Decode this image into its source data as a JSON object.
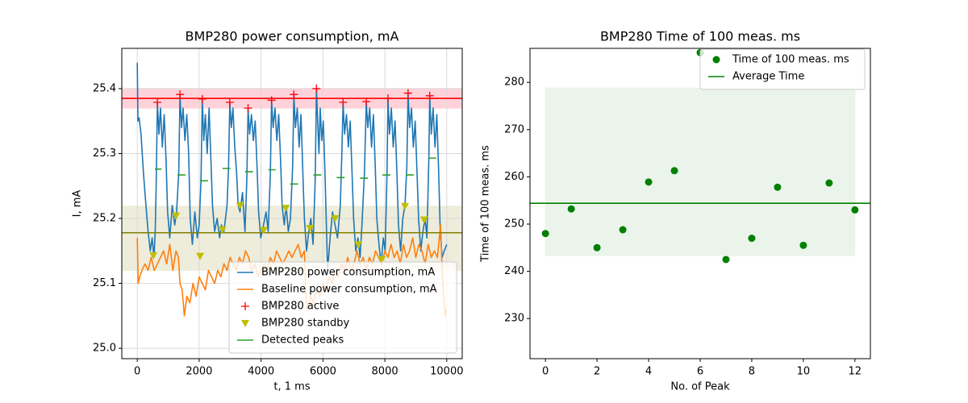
{
  "chart_data": [
    {
      "type": "line",
      "title": "BMP280 power consumption, mA",
      "xlabel": "t, 1 ms",
      "ylabel": "I, mA",
      "xlim": [
        -500,
        10500
      ],
      "ylim": [
        24.984,
        25.462
      ],
      "xticks": [
        0,
        2000,
        4000,
        6000,
        8000,
        10000
      ],
      "yticks": [
        {
          "value": 25,
          "label": "25.0"
        },
        25.1,
        25.2,
        25.3,
        25.4
      ],
      "grid": true,
      "legend": "lower right",
      "reference_lines": [
        {
          "value": 25.385,
          "color": "#ff0000"
        },
        {
          "value": 25.178,
          "color": "#808000"
        }
      ],
      "bands": [
        {
          "range": [
            25.37,
            25.4
          ],
          "color": "#ffc0cb"
        },
        {
          "range": [
            25.12,
            25.219
          ],
          "color": "#e8e4cc"
        }
      ],
      "series": [
        {
          "name": "BMP280 power consumption, mA",
          "color": "#1f77b4",
          "marker": "line",
          "x": [
            0,
            20,
            60,
            120,
            200,
            280,
            350,
            420,
            480,
            540,
            580,
            610,
            650,
            700,
            750,
            810,
            870,
            930,
            980,
            1050,
            1130,
            1210,
            1270,
            1340,
            1380,
            1430,
            1480,
            1540,
            1600,
            1660,
            1710,
            1780,
            1860,
            1940,
            2000,
            2060,
            2100,
            2150,
            2200,
            2260,
            2320,
            2380,
            2430,
            2500,
            2580,
            2660,
            2720,
            2800,
            2900,
            2950,
            2990,
            3040,
            3090,
            3150,
            3210,
            3260,
            3320,
            3400,
            3480,
            3540,
            3580,
            3630,
            3690,
            3750,
            3810,
            3870,
            3920,
            3990,
            4080,
            4160,
            4230,
            4300,
            4340,
            4390,
            4450,
            4510,
            4570,
            4630,
            4680,
            4750,
            4810,
            4880,
            4950,
            5020,
            5060,
            5110,
            5170,
            5230,
            5290,
            5350,
            5400,
            5470,
            5540,
            5610,
            5680,
            5750,
            5790,
            5830,
            5870,
            5910,
            5960,
            6010,
            6060,
            6110,
            6150,
            6230,
            6310,
            6390,
            6470,
            6560,
            6610,
            6650,
            6700,
            6760,
            6820,
            6880,
            6940,
            6990,
            7060,
            7130,
            7200,
            7260,
            7340,
            7400,
            7450,
            7510,
            7570,
            7630,
            7690,
            7740,
            7810,
            7880,
            7950,
            8010,
            8070,
            8100,
            8150,
            8210,
            8270,
            8330,
            8390,
            8440,
            8510,
            8580,
            8650,
            8710,
            8750,
            8800,
            8860,
            8920,
            8980,
            9040,
            9090,
            9160,
            9230,
            9300,
            9360,
            9420,
            9450,
            9500,
            9560,
            9620,
            9680,
            9740,
            9790,
            9850,
            9920,
            10000
          ],
          "values": [
            25.44,
            25.35,
            25.355,
            25.33,
            25.27,
            25.22,
            25.18,
            25.15,
            25.17,
            25.14,
            25.18,
            25.25,
            25.378,
            25.33,
            25.37,
            25.31,
            25.36,
            25.29,
            25.21,
            25.17,
            25.22,
            25.19,
            25.21,
            25.27,
            25.39,
            25.34,
            25.37,
            25.32,
            25.36,
            25.3,
            25.2,
            25.16,
            25.21,
            25.17,
            25.19,
            25.26,
            25.383,
            25.32,
            25.36,
            25.3,
            25.37,
            25.29,
            25.22,
            25.18,
            25.2,
            25.17,
            25.19,
            25.18,
            25.22,
            25.28,
            25.378,
            25.34,
            25.37,
            25.31,
            25.27,
            25.22,
            25.21,
            25.24,
            25.18,
            25.26,
            25.369,
            25.33,
            25.36,
            25.32,
            25.35,
            25.28,
            25.21,
            25.17,
            25.19,
            25.21,
            25.18,
            25.27,
            25.381,
            25.34,
            25.37,
            25.32,
            25.36,
            25.29,
            25.22,
            25.19,
            25.22,
            25.18,
            25.2,
            25.28,
            25.39,
            25.34,
            25.37,
            25.31,
            25.36,
            25.27,
            25.2,
            25.15,
            25.18,
            25.2,
            25.16,
            25.26,
            25.399,
            25.35,
            25.3,
            25.37,
            25.32,
            25.35,
            25.28,
            25.19,
            25.12,
            25.17,
            25.21,
            25.19,
            25.17,
            25.22,
            25.3,
            25.378,
            25.33,
            25.36,
            25.31,
            25.35,
            25.27,
            25.2,
            25.15,
            25.17,
            25.14,
            25.19,
            25.27,
            25.379,
            25.34,
            25.37,
            25.31,
            25.36,
            25.28,
            25.2,
            25.16,
            25.13,
            25.17,
            25.15,
            25.27,
            25.384,
            25.33,
            25.37,
            25.31,
            25.35,
            25.27,
            25.19,
            25.15,
            25.2,
            25.22,
            25.28,
            25.392,
            25.34,
            25.37,
            25.31,
            25.35,
            25.27,
            25.2,
            25.15,
            25.18,
            25.2,
            25.17,
            25.29,
            25.388,
            25.33,
            25.37,
            25.31,
            25.36,
            25.27,
            25.18,
            25.14,
            25.15,
            25.16
          ]
        },
        {
          "name": "Baseline power consumption, mA",
          "color": "#ff7f0e",
          "marker": "line",
          "x": [
            0,
            30,
            80,
            150,
            250,
            350,
            450,
            550,
            650,
            750,
            850,
            950,
            1050,
            1150,
            1250,
            1330,
            1380,
            1450,
            1520,
            1600,
            1700,
            1800,
            1900,
            2000,
            2100,
            2200,
            2300,
            2400,
            2500,
            2600,
            2700,
            2800,
            2900,
            3000,
            3100,
            3200,
            3300,
            3400,
            3500,
            3600,
            3700,
            3800,
            3900,
            4000,
            4100,
            4200,
            4300,
            4400,
            4500,
            4600,
            4700,
            4800,
            4900,
            5000,
            5100,
            5200,
            5300,
            5400,
            5450,
            5500,
            5600,
            5700,
            5800,
            5900,
            6000,
            6100,
            6200,
            6300,
            6400,
            6500,
            6600,
            6700,
            6800,
            6900,
            7000,
            7100,
            7200,
            7300,
            7400,
            7500,
            7600,
            7700,
            7800,
            7900,
            8000,
            8100,
            8200,
            8300,
            8400,
            8500,
            8600,
            8700,
            8800,
            8900,
            9000,
            9100,
            9200,
            9300,
            9400,
            9500,
            9600,
            9700,
            9800,
            9850,
            9900,
            9950,
            10000
          ],
          "values": [
            25.17,
            25.1,
            25.11,
            25.12,
            25.13,
            25.12,
            25.14,
            25.12,
            25.13,
            25.14,
            25.15,
            25.13,
            25.16,
            25.12,
            25.15,
            25.14,
            25.1,
            25.09,
            25.05,
            25.08,
            25.07,
            25.1,
            25.08,
            25.11,
            25.1,
            25.09,
            25.12,
            25.11,
            25.1,
            25.12,
            25.11,
            25.13,
            25.12,
            25.14,
            25.13,
            25.12,
            25.14,
            25.13,
            25.15,
            25.14,
            25.12,
            25.13,
            25.11,
            25.12,
            25.13,
            25.12,
            25.14,
            25.13,
            25.15,
            25.14,
            25.13,
            25.14,
            25.15,
            25.14,
            25.15,
            25.16,
            25.14,
            25.15,
            25.08,
            25.06,
            25.08,
            25.07,
            25.09,
            25.08,
            25.1,
            25.09,
            25.11,
            25.1,
            25.12,
            25.11,
            25.13,
            25.12,
            25.14,
            25.12,
            25.13,
            25.15,
            25.13,
            25.14,
            25.12,
            25.14,
            25.13,
            25.15,
            25.14,
            25.13,
            25.15,
            25.14,
            25.16,
            25.14,
            25.15,
            25.13,
            25.16,
            25.14,
            25.15,
            25.17,
            25.14,
            25.16,
            25.15,
            25.13,
            25.16,
            25.14,
            25.15,
            25.14,
            25.19,
            25.12,
            25.08,
            25.05,
            25.06
          ]
        },
        {
          "name": "BMP280 active",
          "color": "#ff0000",
          "marker": "+",
          "x": [
            650,
            1380,
            2100,
            2990,
            3580,
            4340,
            5060,
            5790,
            6650,
            7400,
            8100,
            8750,
            9450
          ],
          "values": [
            25.379,
            25.391,
            25.384,
            25.379,
            25.37,
            25.382,
            25.391,
            25.4,
            25.379,
            25.38,
            25.385,
            25.393,
            25.389
          ]
        },
        {
          "name": "BMP280 standby",
          "color": "#bfbf00",
          "marker": "v",
          "x": [
            520,
            1250,
            2030,
            2750,
            3320,
            4080,
            4800,
            5580,
            6390,
            7140,
            7900,
            8650,
            9270
          ],
          "values": [
            25.143,
            25.204,
            25.142,
            25.183,
            25.22,
            25.182,
            25.216,
            25.185,
            25.2,
            25.16,
            25.137,
            25.219,
            25.198
          ]
        },
        {
          "name": "Detected peaks",
          "color": "#2ca02c",
          "marker": "line",
          "x": [
            571,
            779,
            null,
            1299,
            1558,
            null,
            2026,
            2286,
            null,
            2753,
            3013,
            null,
            3481,
            3740,
            null,
            4234,
            4468,
            null,
            4935,
            5195,
            null,
            5688,
            5948,
            null,
            6442,
            6701,
            null,
            7195,
            7455,
            null,
            7922,
            8182,
            null,
            8675,
            8935,
            null,
            9403,
            9662
          ],
          "values": [
            25.276,
            25.276,
            null,
            25.267,
            25.267,
            null,
            25.258,
            25.258,
            null,
            25.277,
            25.277,
            null,
            25.272,
            25.272,
            null,
            25.275,
            25.275,
            null,
            25.253,
            25.253,
            null,
            25.267,
            25.267,
            null,
            25.263,
            25.263,
            null,
            25.262,
            25.262,
            null,
            25.267,
            25.267,
            null,
            25.267,
            25.267,
            null,
            25.293,
            25.293
          ]
        }
      ]
    },
    {
      "type": "scatter",
      "title": "BMP280 Time of 100 meas. ms",
      "xlabel": "No. of Peak",
      "ylabel": "Time of 100 meas. ms",
      "xlim": [
        -0.6,
        12.6
      ],
      "ylim": [
        221.5,
        287.2
      ],
      "xticks": [
        0,
        2,
        4,
        6,
        8,
        10,
        12
      ],
      "yticks": [
        230,
        240,
        250,
        260,
        270,
        280
      ],
      "grid": false,
      "legend": "upper right",
      "bands": [
        {
          "x": [
            0,
            12
          ],
          "range": [
            243.3,
            278.8
          ],
          "color": "#e3f0e3"
        }
      ],
      "series": [
        {
          "name": "Time of 100 meas. ms",
          "color": "#008000",
          "marker": "o",
          "x": [
            0,
            1,
            2,
            3,
            4,
            5,
            6,
            7,
            8,
            9,
            10,
            11,
            12
          ],
          "values": [
            248,
            253.2,
            245,
            248.8,
            258.9,
            261.3,
            286.3,
            242.5,
            247,
            257.8,
            245.5,
            258.7,
            253
          ]
        },
        {
          "name": "Average Time",
          "color": "#008000",
          "marker": "hline",
          "values": [
            254.4
          ]
        }
      ]
    }
  ]
}
